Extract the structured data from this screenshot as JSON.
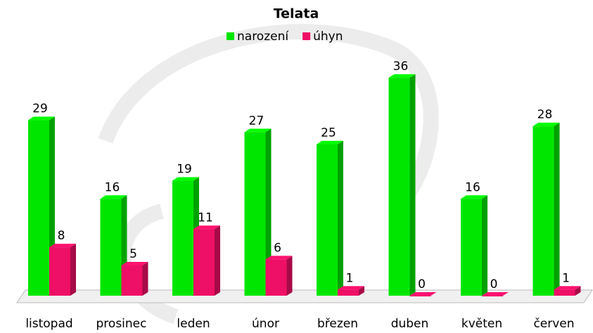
{
  "chart_data": {
    "type": "bar3d",
    "title": "Telata",
    "categories": [
      "listopad",
      "prosinec",
      "leden",
      "únor",
      "březen",
      "duben",
      "květen",
      "červen"
    ],
    "series": [
      {
        "name": "narození",
        "color": "#00e600",
        "values": [
          29,
          16,
          19,
          27,
          25,
          36,
          16,
          28
        ]
      },
      {
        "name": "úhyn",
        "color": "#ee0f66",
        "values": [
          8,
          5,
          11,
          6,
          1,
          0,
          0,
          1
        ]
      }
    ],
    "ylim": [
      0,
      40
    ],
    "legend": "top"
  }
}
